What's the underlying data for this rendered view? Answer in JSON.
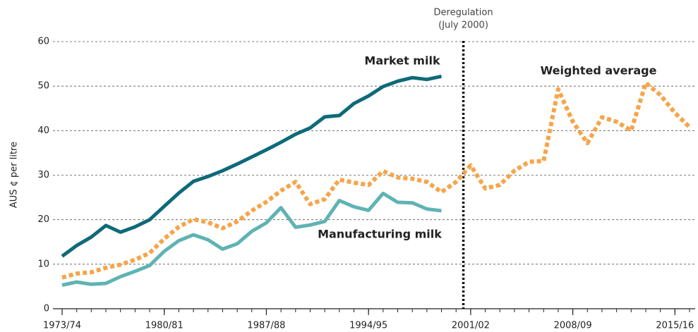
{
  "chart_data": {
    "type": "line",
    "y_label": "AUS ¢ per litre",
    "x": [
      1973,
      1974,
      1975,
      1976,
      1977,
      1978,
      1979,
      1980,
      1981,
      1982,
      1983,
      1984,
      1985,
      1986,
      1987,
      1988,
      1989,
      1990,
      1991,
      1992,
      1993,
      1994,
      1995,
      1996,
      1997,
      1998,
      1999,
      2000,
      2001,
      2002,
      2003,
      2004,
      2005,
      2006,
      2007,
      2008,
      2009,
      2010,
      2011,
      2012,
      2013,
      2014,
      2015,
      2016
    ],
    "xlim": [
      1973,
      2016
    ],
    "xticks": [
      {
        "value": 1973,
        "label": "1973/74"
      },
      {
        "value": 1980,
        "label": "1980/81"
      },
      {
        "value": 1987,
        "label": "1987/88"
      },
      {
        "value": 1994,
        "label": "1994/95"
      },
      {
        "value": 2001,
        "label": "2001/02"
      },
      {
        "value": 2008,
        "label": "2008/09"
      },
      {
        "value": 2015,
        "label": "2015/16"
      }
    ],
    "ylim": [
      0,
      60
    ],
    "yticks": [
      0,
      10,
      20,
      30,
      40,
      50,
      60
    ],
    "grid": true,
    "series": [
      {
        "name": "Market milk",
        "color": "#0e6a78",
        "style": "solid",
        "values": [
          11.8,
          14.2,
          16.1,
          18.7,
          17.2,
          18.4,
          20,
          23,
          26,
          28.6,
          29.7,
          31,
          32.5,
          34.1,
          35.7,
          37.4,
          39.2,
          40.6,
          43.1,
          43.4,
          46.1,
          47.8,
          49.9,
          51.1,
          51.9,
          51.5,
          52.2,
          null,
          null,
          null,
          null,
          null,
          null,
          null,
          null,
          null,
          null,
          null,
          null,
          null,
          null,
          null,
          null,
          null
        ]
      },
      {
        "name": "Manufacturing milk",
        "color": "#5fb3b3",
        "style": "solid",
        "values": [
          5.3,
          6,
          5.5,
          5.7,
          7.2,
          8.4,
          9.7,
          12.9,
          15.3,
          16.6,
          15.5,
          13.4,
          14.6,
          17.4,
          19.3,
          22.7,
          18.3,
          18.8,
          19.6,
          24.3,
          22.9,
          22.1,
          25.9,
          23.9,
          23.8,
          22.4,
          22,
          null,
          null,
          null,
          null,
          null,
          null,
          null,
          null,
          null,
          null,
          null,
          null,
          null,
          null,
          null,
          null,
          null
        ]
      },
      {
        "name": "Weighted average",
        "color": "#f5a54a",
        "style": "dotted",
        "values": [
          7,
          7.9,
          8.2,
          9.2,
          9.9,
          11,
          12.5,
          15.7,
          18.4,
          20.1,
          19.4,
          18.1,
          19.6,
          22,
          24,
          26.5,
          28.5,
          23.5,
          24.6,
          29,
          28.3,
          27.8,
          30.9,
          29.5,
          29.2,
          28.5,
          26.2,
          28.5,
          32.2,
          27,
          27.8,
          31,
          33,
          33.2,
          49.3,
          42,
          37.2,
          43,
          42,
          40,
          50.7,
          48,
          44,
          40.8
        ]
      }
    ],
    "annotation": {
      "lines": [
        "Deregulation",
        "(July 2000)"
      ],
      "x": 2000.5
    }
  }
}
